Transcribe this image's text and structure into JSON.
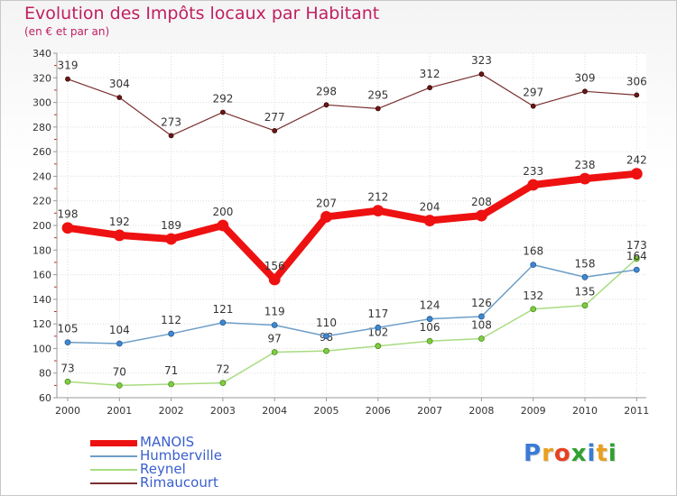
{
  "header": {
    "title": "Evolution des Impôts locaux par Habitant",
    "subtitle": "(en € et par an)"
  },
  "logo": {
    "text": "Proxiti",
    "colors": [
      "#3a7bd5",
      "#e8a020",
      "#e84020",
      "#30a030",
      "#3a7bd5",
      "#e8a020",
      "#30a030"
    ]
  },
  "chart_data": {
    "type": "line",
    "title": "Evolution des Impôts locaux par Habitant",
    "subtitle": "(en € et par an)",
    "xlabel": "",
    "ylabel": "",
    "ylim": [
      60,
      340
    ],
    "yticks": [
      60,
      80,
      100,
      120,
      140,
      160,
      180,
      200,
      220,
      240,
      260,
      280,
      300,
      320,
      340
    ],
    "grid": true,
    "legend_position": "bottom-left",
    "categories": [
      "2000",
      "2001",
      "2002",
      "2003",
      "2004",
      "2005",
      "2006",
      "2007",
      "2008",
      "2009",
      "2010",
      "2011"
    ],
    "series": [
      {
        "name": "MANOIS",
        "color": "#ee1111",
        "values": [
          198,
          192,
          189,
          200,
          156,
          207,
          212,
          204,
          208,
          233,
          238,
          242
        ]
      },
      {
        "name": "Humberville",
        "color": "#6e9ec8",
        "marker": "#3d88d0",
        "values": [
          105,
          104,
          112,
          121,
          119,
          110,
          117,
          124,
          126,
          168,
          158,
          164
        ]
      },
      {
        "name": "Reynel",
        "color": "#a8dc80",
        "marker": "#80cc40",
        "values": [
          73,
          70,
          71,
          72,
          97,
          98,
          102,
          106,
          108,
          132,
          135,
          173
        ]
      },
      {
        "name": "Rimaucourt",
        "color": "#7a3030",
        "marker": "#6a1818",
        "values": [
          319,
          304,
          273,
          292,
          277,
          298,
          295,
          312,
          323,
          297,
          309,
          306
        ]
      }
    ],
    "data_labels": {
      "MANOIS": [
        "198",
        "192",
        "189",
        "200",
        "156",
        "207",
        "212",
        "204",
        "208",
        "233",
        "238",
        "242"
      ],
      "Humberville": [
        "105",
        "104",
        "112",
        "121",
        "119",
        "110",
        "117",
        "124",
        "126",
        "168",
        "158",
        "164"
      ],
      "Reynel": [
        "73",
        "70",
        "71",
        "72",
        "97",
        "98",
        "102",
        "106",
        "108",
        "132",
        "135",
        "173"
      ],
      "Rimaucourt": [
        "319",
        "304",
        "273",
        "292",
        "277",
        "298",
        "295",
        "312",
        "323",
        "297",
        "309",
        "306"
      ]
    }
  }
}
